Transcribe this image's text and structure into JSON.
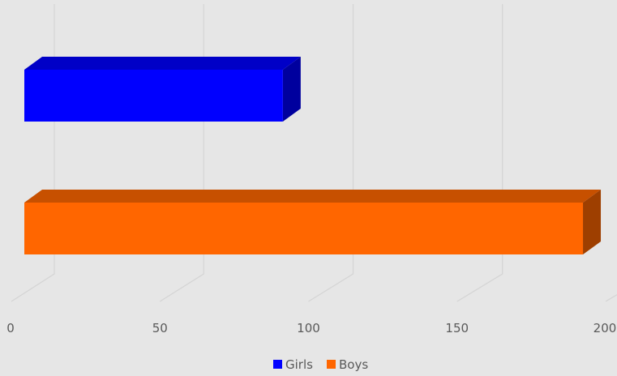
{
  "chart_data": {
    "type": "bar",
    "orientation": "horizontal",
    "three_d": true,
    "categories": [
      "",
      ""
    ],
    "series": [
      {
        "name": "Girls",
        "values": [
          0,
          87
        ],
        "color": "#0000ff"
      },
      {
        "name": "Boys",
        "values": [
          188,
          0
        ],
        "color": "#ff6600"
      }
    ],
    "xlim": [
      0,
      200
    ],
    "xticks": [
      "0",
      "50",
      "100",
      "150",
      "200"
    ],
    "title": "",
    "xlabel": "",
    "ylabel": "",
    "grid": true,
    "legend": {
      "position": "bottom",
      "entries": [
        "Girls",
        "Boys"
      ]
    }
  }
}
